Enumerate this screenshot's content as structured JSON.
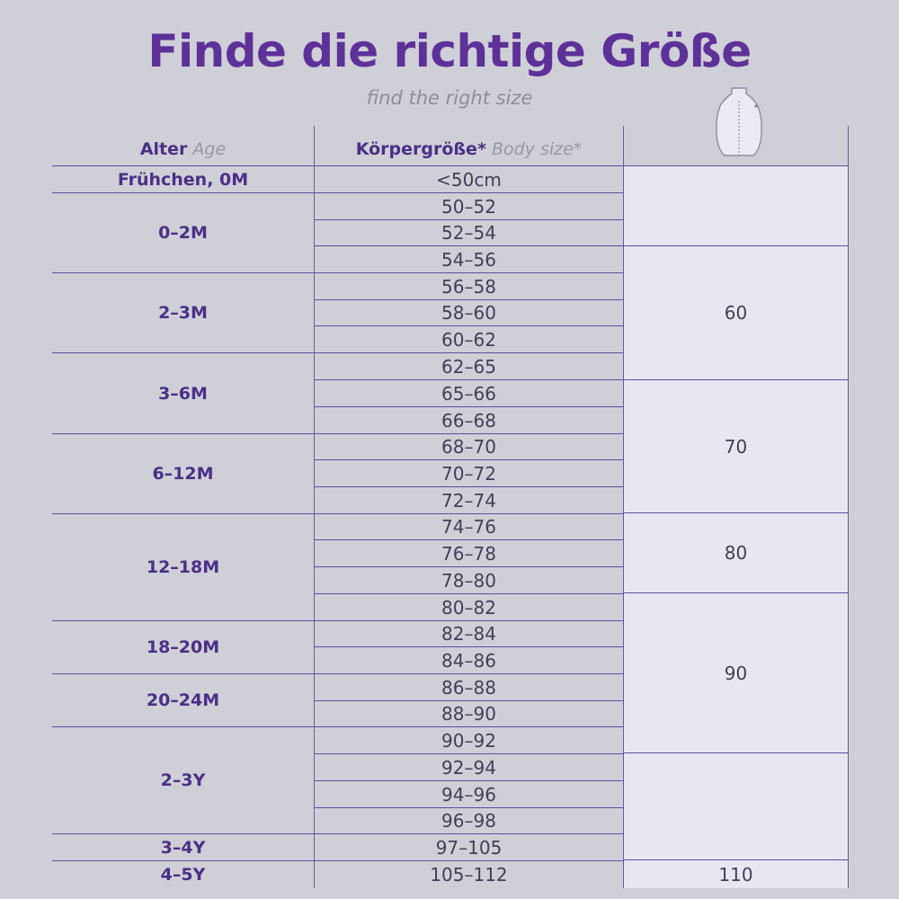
{
  "title": "Finde die richtige Größe",
  "subtitle": "find the right size",
  "headers": {
    "age_de": "Alter",
    "age_en": "Age",
    "body_de": "Körpergröße*",
    "body_en": "Body size*",
    "size_icon": "sleeping-bag-icon"
  },
  "age_groups": [
    "Frühchen, 0M",
    "0–2M",
    "2–3M",
    "3–6M",
    "6–12M",
    "12–18M",
    "18–20M",
    "20–24M",
    "2–3Y",
    "3–4Y",
    "4–5Y"
  ],
  "body_sizes": [
    "<50cm",
    "50–52",
    "52–54",
    "54–56",
    "56–58",
    "58–60",
    "60–62",
    "62–65",
    "65–66",
    "66–68",
    "68–70",
    "70–72",
    "72–74",
    "74–76",
    "76–78",
    "78–80",
    "80–82",
    "82–84",
    "84–86",
    "86–88",
    "88–90",
    "90–92",
    "92–94",
    "94–96",
    "96–98",
    "97–105",
    "105–112"
  ],
  "product_sizes": [
    "",
    "60",
    "70",
    "80",
    "90",
    "",
    "110"
  ],
  "colors": {
    "title": "#5e3199",
    "background": "#cfcfd7",
    "size_cell": "#e9e6f1",
    "lines": "#5b4ea0"
  }
}
